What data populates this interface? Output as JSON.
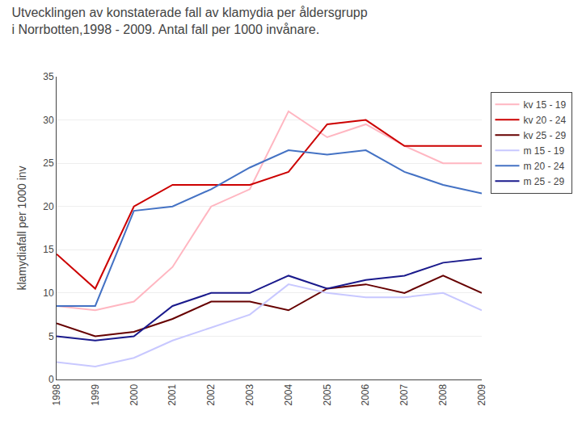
{
  "chart_data": {
    "type": "line",
    "title": "Utvecklingen av konstaterade fall av klamydia per åldersgrupp",
    "subtitle": "i Norrbotten,1998 - 2009. Antal fall per 1000 invånare.",
    "ylabel": "klamydiafall per 1000 inv",
    "x": [
      1998,
      1999,
      2000,
      2001,
      2002,
      2003,
      2004,
      2005,
      2006,
      2007,
      2008,
      2009
    ],
    "series": [
      {
        "name": "kv 15 - 19",
        "color": "#FFB6C1",
        "values": [
          8.5,
          8.0,
          9.0,
          13.0,
          20.0,
          22.0,
          31.0,
          28.0,
          29.5,
          27.0,
          25.0,
          25.0
        ]
      },
      {
        "name": "kv 20 - 24",
        "color": "#CC0000",
        "values": [
          14.5,
          10.5,
          20.0,
          22.5,
          22.5,
          22.5,
          24.0,
          29.5,
          30.0,
          27.0,
          27.0,
          27.0
        ]
      },
      {
        "name": "kv 25 - 29",
        "color": "#660000",
        "values": [
          6.5,
          5.0,
          5.5,
          7.0,
          9.0,
          9.0,
          8.0,
          10.5,
          11.0,
          10.0,
          12.0,
          10.0
        ]
      },
      {
        "name": "m 15 - 19",
        "color": "#C8C8FF",
        "values": [
          2.0,
          1.5,
          2.5,
          4.5,
          6.0,
          7.5,
          11.0,
          10.0,
          9.5,
          9.5,
          10.0,
          8.0
        ]
      },
      {
        "name": "m 20 - 24",
        "color": "#4472C4",
        "values": [
          8.5,
          8.5,
          19.5,
          20.0,
          22.0,
          24.5,
          26.5,
          26.0,
          26.5,
          24.0,
          22.5,
          21.5
        ]
      },
      {
        "name": "m 25 - 29",
        "color": "#1a1a8c",
        "values": [
          5.0,
          4.5,
          5.0,
          8.5,
          10.0,
          10.0,
          12.0,
          10.5,
          11.5,
          12.0,
          13.5,
          14.0
        ]
      }
    ],
    "xlim": [
      1998,
      2009
    ],
    "xticks": [
      1998,
      1999,
      2000,
      2001,
      2002,
      2003,
      2004,
      2005,
      2006,
      2007,
      2008,
      2009
    ],
    "ylim": [
      0,
      35
    ],
    "yticks": [
      0,
      5,
      10,
      15,
      20,
      25,
      30,
      35
    ],
    "grid": true,
    "legend": "right"
  }
}
